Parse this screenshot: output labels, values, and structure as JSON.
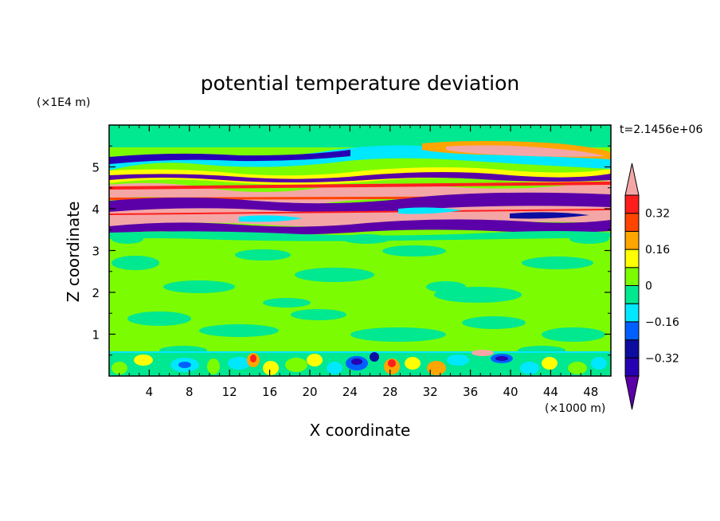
{
  "chart_data": {
    "type": "heatmap",
    "title": "potential temperature deviation",
    "xlabel": "X coordinate",
    "ylabel": "Z coordinate",
    "x_unit": "(×1000 m)",
    "y_unit": "(×1E4 m)",
    "time_label": "t=2.1456e+06",
    "xlim": [
      0,
      50
    ],
    "ylim": [
      0,
      6
    ],
    "x_ticks": [
      4,
      8,
      12,
      16,
      20,
      24,
      28,
      32,
      36,
      40,
      44,
      48
    ],
    "y_ticks": [
      1,
      2,
      3,
      4,
      5
    ],
    "colorbar": {
      "levels": [
        -0.4,
        -0.32,
        -0.24,
        -0.16,
        -0.08,
        0,
        0.08,
        0.16,
        0.24,
        0.32,
        0.4
      ],
      "labeled_levels": [
        0.32,
        0.16,
        0,
        -0.16,
        -0.32
      ],
      "colors_low_to_high": [
        "#5b00a8",
        "#2800b4",
        "#0c0ca0",
        "#0060ff",
        "#00e8ff",
        "#00e890",
        "#7cfc00",
        "#ffff00",
        "#ffa500",
        "#ff4500",
        "#ff1e1e",
        "#f4a6a6"
      ],
      "extend": "both"
    },
    "bands": [
      {
        "z_range": [
          0,
          0.6
        ],
        "pattern": "boundary layer, mixed warm/cold turbulent cells"
      },
      {
        "z_range": [
          0.6,
          3.4
        ],
        "pattern": "near zero, weak noise"
      },
      {
        "z_range": [
          3.4,
          5.5
        ],
        "pattern": "strong alternating warm and cold layers"
      },
      {
        "z_range": [
          5.5,
          6.0
        ],
        "pattern": "near zero"
      }
    ]
  }
}
